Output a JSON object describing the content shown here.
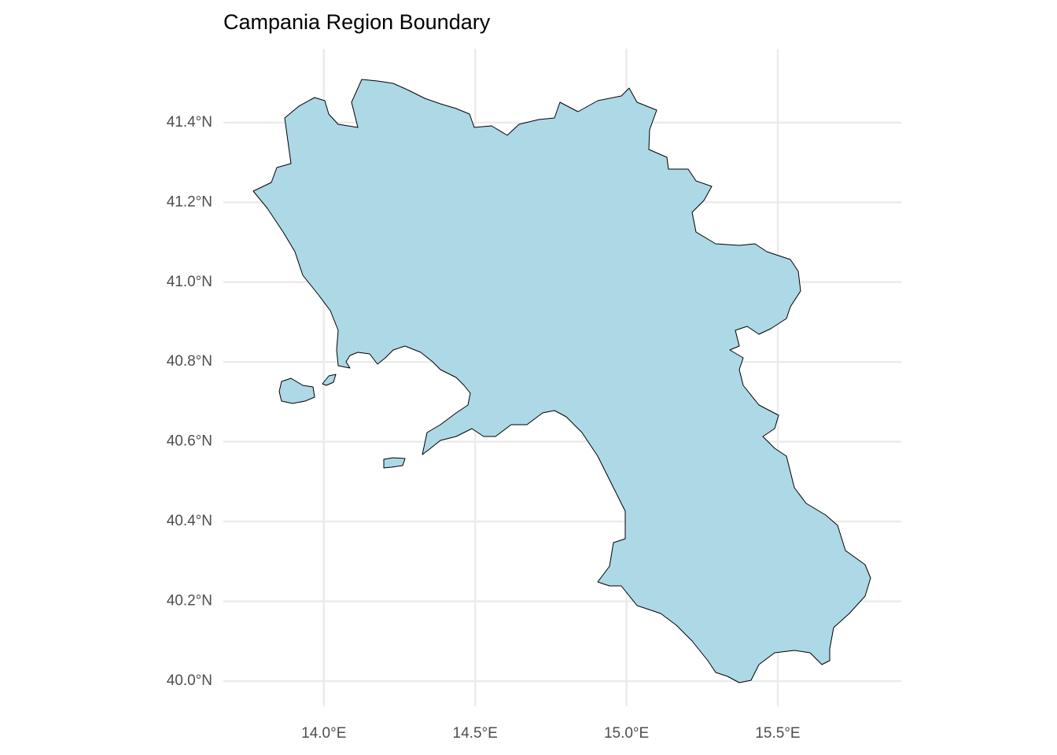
{
  "chart_data": {
    "type": "map",
    "title": "Campania Region Boundary",
    "xlim": [
      13.668,
      15.908
    ],
    "ylim": [
      39.937,
      41.585
    ],
    "xticks": [
      {
        "value": 14.0,
        "label": "14.0°E"
      },
      {
        "value": 14.5,
        "label": "14.5°E"
      },
      {
        "value": 15.0,
        "label": "15.0°E"
      },
      {
        "value": 15.5,
        "label": "15.5°E"
      }
    ],
    "yticks": [
      {
        "value": 40.0,
        "label": "40.0°N"
      },
      {
        "value": 40.2,
        "label": "40.2°N"
      },
      {
        "value": 40.4,
        "label": "40.4°N"
      },
      {
        "value": 40.6,
        "label": "40.6°N"
      },
      {
        "value": 40.8,
        "label": "40.8°N"
      },
      {
        "value": 41.0,
        "label": "41.0°N"
      },
      {
        "value": 41.2,
        "label": "41.2°N"
      },
      {
        "value": 41.4,
        "label": "41.4°N"
      }
    ],
    "grid": true,
    "color": "#add8e6"
  }
}
